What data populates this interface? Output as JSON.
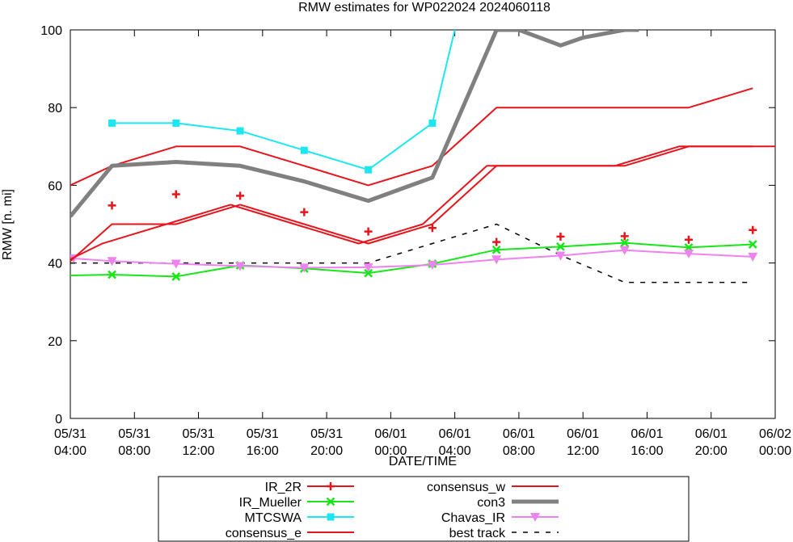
{
  "chart_data": {
    "type": "line",
    "title": "RMW estimates for WP022024 2024060118",
    "xlabel": "DATE/TIME",
    "ylabel": "RMW [n. mi]",
    "ylim": [
      0,
      100
    ],
    "xlim_hours": [
      0,
      44
    ],
    "y_ticks": [
      "0",
      "20",
      "40",
      "60",
      "80",
      "100"
    ],
    "x_ticks": [
      {
        "hour": 0,
        "date": "05/31",
        "time": "04:00"
      },
      {
        "hour": 4,
        "date": "05/31",
        "time": "08:00"
      },
      {
        "hour": 8,
        "date": "05/31",
        "time": "12:00"
      },
      {
        "hour": 12,
        "date": "05/31",
        "time": "16:00"
      },
      {
        "hour": 16,
        "date": "05/31",
        "time": "20:00"
      },
      {
        "hour": 20,
        "date": "06/01",
        "time": "00:00"
      },
      {
        "hour": 24,
        "date": "06/01",
        "time": "04:00"
      },
      {
        "hour": 28,
        "date": "06/01",
        "time": "08:00"
      },
      {
        "hour": 32,
        "date": "06/01",
        "time": "12:00"
      },
      {
        "hour": 36,
        "date": "06/01",
        "time": "16:00"
      },
      {
        "hour": 40,
        "date": "06/01",
        "time": "20:00"
      },
      {
        "hour": 44,
        "date": "06/02",
        "time": "00:00"
      }
    ],
    "series": [
      {
        "name": "IR_2R",
        "color": "#e8141c",
        "marker": "plus",
        "width": 2,
        "x": [
          0,
          2,
          6,
          10,
          14,
          18,
          22,
          26,
          30,
          34,
          38,
          42,
          44.5
        ],
        "y": [
          41,
          45,
          50,
          55,
          50,
          45,
          50,
          65,
          65,
          65,
          70,
          70,
          70
        ],
        "points": [
          [
            2.6,
            54.8
          ],
          [
            6.6,
            57.7
          ],
          [
            10.6,
            57.3
          ],
          [
            14.6,
            53.1
          ],
          [
            18.6,
            48.1
          ],
          [
            22.6,
            49.0
          ],
          [
            26.6,
            45.4
          ],
          [
            30.6,
            46.8
          ],
          [
            34.6,
            46.9
          ],
          [
            38.6,
            46.0
          ],
          [
            42.6,
            48.5
          ]
        ]
      },
      {
        "name": "IR_Mueller",
        "color": "#19e619",
        "marker": "cross",
        "width": 2,
        "x": [
          0,
          2.6,
          6.6,
          10.6,
          14.6,
          18.6,
          22.6,
          26.6,
          30.6,
          34.6,
          38.6,
          42.6
        ],
        "y": [
          36.8,
          37.0,
          36.5,
          39.4,
          38.6,
          37.4,
          39.8,
          43.4,
          44.2,
          45.2,
          44.0,
          44.8
        ]
      },
      {
        "name": "MTCSWA",
        "color": "#1ee6f0",
        "marker": "square",
        "width": 2,
        "x": [
          2.6,
          6.6,
          10.6,
          14.6,
          18.6,
          22.6,
          24.0
        ],
        "y": [
          76,
          76,
          74,
          69,
          64,
          76,
          100
        ]
      },
      {
        "name": "consensus_e",
        "color": "#e8141c",
        "marker": "none",
        "width": 2,
        "x": [
          0,
          2.6,
          6.6,
          10.6,
          14.6,
          18.6,
          22.6,
          26.6,
          30.6,
          34.6,
          38.6,
          42.6
        ],
        "y": [
          60,
          65,
          70,
          70,
          65,
          60,
          65,
          80,
          80,
          80,
          80,
          85
        ]
      },
      {
        "name": "consensus_w",
        "color": "#e8141c",
        "marker": "none",
        "width": 2,
        "x": [
          0,
          2.6,
          6.6,
          10.6,
          14.6,
          18.6,
          22.6,
          26.6,
          30.6,
          34.6,
          38.6,
          42.6
        ],
        "y": [
          40.5,
          50,
          50,
          55,
          50,
          45,
          50,
          65,
          65,
          65,
          70,
          70
        ]
      },
      {
        "name": "con3",
        "color": "#808080",
        "marker": "none",
        "width": 5,
        "x": [
          0,
          2.6,
          6.6,
          10.6,
          14.6,
          18.6,
          22.6,
          26.6,
          28.0,
          30.6,
          32.0,
          34.6,
          35.5
        ],
        "y": [
          52,
          65,
          66,
          65,
          61,
          56,
          62,
          100,
          100,
          96,
          98,
          100,
          100
        ]
      },
      {
        "name": "Chavas_IR",
        "color": "#ee82ee",
        "marker": "triangle",
        "width": 2,
        "x": [
          0,
          2.6,
          6.6,
          10.6,
          14.6,
          18.6,
          22.6,
          26.6,
          30.6,
          34.6,
          38.6,
          42.6
        ],
        "y": [
          41.2,
          40.5,
          39.8,
          39.2,
          38.8,
          38.9,
          39.5,
          40.9,
          41.9,
          43.3,
          42.4,
          41.6
        ]
      },
      {
        "name": "best track",
        "color": "#000000",
        "marker": "none",
        "width": 1.5,
        "dash": "6,8",
        "x": [
          0,
          6.6,
          10.6,
          14.6,
          18.6,
          22.6,
          26.6,
          30.6,
          34.6,
          38.6,
          42.6
        ],
        "y": [
          40,
          40,
          40,
          40,
          40,
          45,
          50,
          42,
          35,
          35,
          35
        ]
      }
    ],
    "legend": {
      "position": "bottom",
      "columns": [
        [
          "IR_2R",
          "IR_Mueller",
          "MTCSWA",
          "consensus_e"
        ],
        [
          "consensus_w",
          "con3",
          "Chavas_IR",
          "best track"
        ]
      ]
    }
  }
}
